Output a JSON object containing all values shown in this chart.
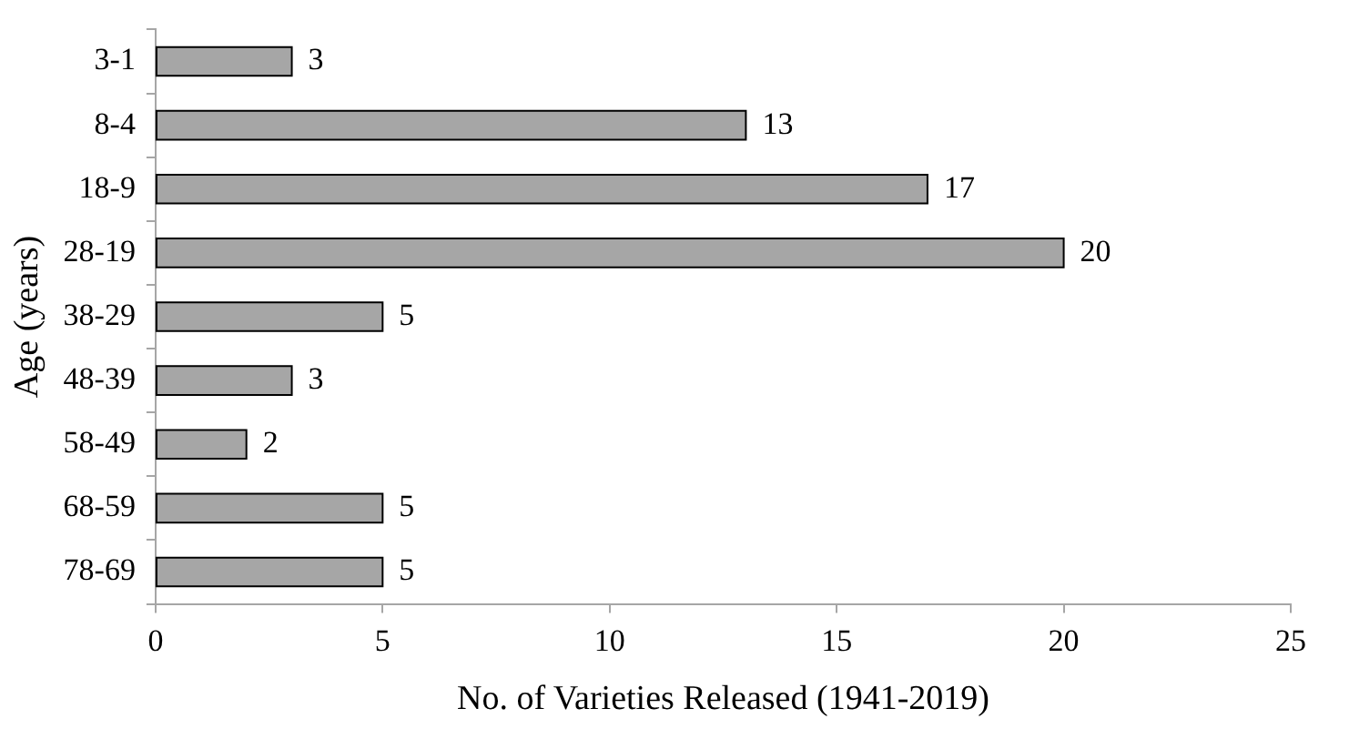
{
  "chart_data": {
    "type": "bar",
    "orientation": "horizontal",
    "xlabel": "No. of Varieties Released (1941-2019)",
    "ylabel": "Age (years)",
    "categories": [
      "3-1",
      "8-4",
      "18-9",
      "28-19",
      "38-29",
      "48-39",
      "58-49",
      "68-59",
      "78-69"
    ],
    "values": [
      3,
      13,
      17,
      20,
      5,
      3,
      2,
      5,
      5
    ],
    "color": "#a6a6a6",
    "xlim": [
      0,
      25
    ],
    "xticks": [
      0,
      5,
      10,
      15,
      20,
      25
    ],
    "data_labels": true
  }
}
